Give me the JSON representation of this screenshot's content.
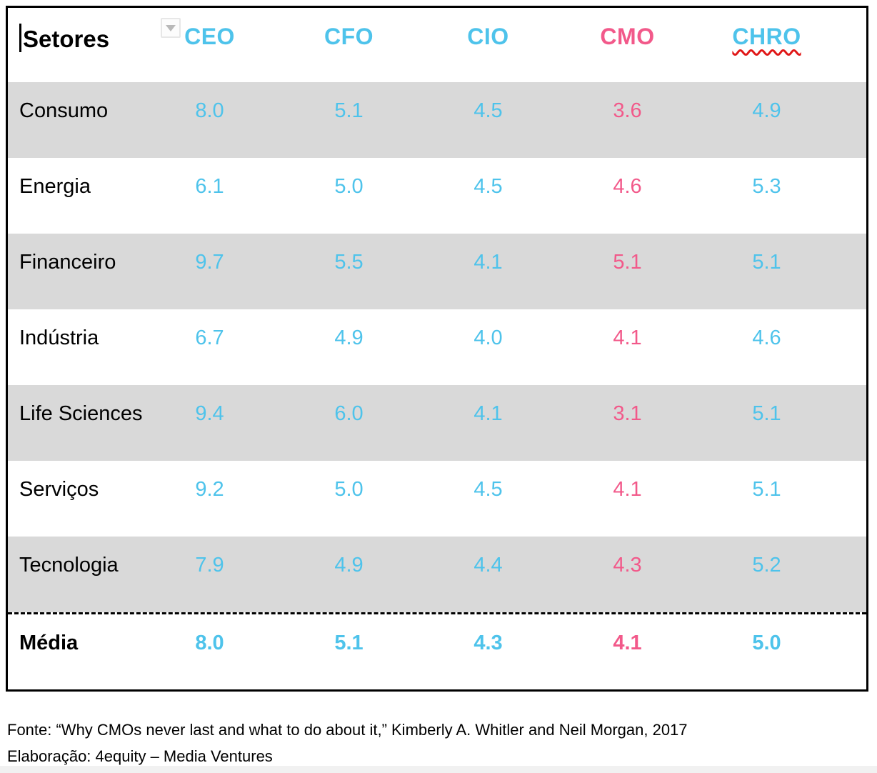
{
  "colors": {
    "value_blue": "#4ec3eb",
    "value_pink": "#f2598a",
    "shaded_row": "#d9d9d9",
    "squiggle_red": "#e01818",
    "border_black": "#000000"
  },
  "table": {
    "header": {
      "label": "Setores",
      "filter_icon": "dropdown-triangle",
      "columns": [
        {
          "label": "CEO"
        },
        {
          "label": "CFO"
        },
        {
          "label": "CIO"
        },
        {
          "label": "CMO"
        },
        {
          "label": "CHRO"
        }
      ]
    },
    "rows": [
      {
        "label": "Consumo",
        "values": [
          "8.0",
          "5.1",
          "4.5",
          "3.6",
          "4.9"
        ]
      },
      {
        "label": "Energia",
        "values": [
          "6.1",
          "5.0",
          "4.5",
          "4.6",
          "5.3"
        ]
      },
      {
        "label": "Financeiro",
        "values": [
          "9.7",
          "5.5",
          "4.1",
          "5.1",
          "5.1"
        ]
      },
      {
        "label": "Indústria",
        "values": [
          "6.7",
          "4.9",
          "4.0",
          "4.1",
          "4.6"
        ]
      },
      {
        "label": "Life Sciences",
        "values": [
          "9.4",
          "6.0",
          "4.1",
          "3.1",
          "5.1"
        ]
      },
      {
        "label": "Serviços",
        "values": [
          "9.2",
          "5.0",
          "4.5",
          "4.1",
          "5.1"
        ]
      },
      {
        "label": "Tecnologia",
        "values": [
          "7.9",
          "4.9",
          "4.4",
          "4.3",
          "5.2"
        ]
      }
    ],
    "total_row": {
      "label": "Média",
      "values": [
        "8.0",
        "5.1",
        "4.3",
        "4.1",
        "5.0"
      ]
    }
  },
  "footer": {
    "source": "Fonte: “Why CMOs never last and what to do about it,” Kimberly A. Whitler and Neil Morgan, 2017",
    "elaboration": "Elaboração: 4equity – Media Ventures"
  },
  "chart_data": {
    "type": "table",
    "title": "Tenure by sector for C-suite roles (years)",
    "columns": [
      "Setores",
      "CEO",
      "CFO",
      "CIO",
      "CMO",
      "CHRO"
    ],
    "rows": [
      [
        "Consumo",
        8.0,
        5.1,
        4.5,
        3.6,
        4.9
      ],
      [
        "Energia",
        6.1,
        5.0,
        4.5,
        4.6,
        5.3
      ],
      [
        "Financeiro",
        9.7,
        5.5,
        4.1,
        5.1,
        5.1
      ],
      [
        "Indústria",
        6.7,
        4.9,
        4.0,
        4.1,
        4.6
      ],
      [
        "Life Sciences",
        9.4,
        6.0,
        4.1,
        3.1,
        5.1
      ],
      [
        "Serviços",
        9.2,
        5.0,
        4.5,
        4.1,
        5.1
      ],
      [
        "Tecnologia",
        7.9,
        4.9,
        4.4,
        4.3,
        5.2
      ],
      [
        "Média",
        8.0,
        5.1,
        4.3,
        4.1,
        5.0
      ]
    ],
    "notes": "CMO column highlighted in pink; averages row (Média) separated by dashed line and bold"
  }
}
